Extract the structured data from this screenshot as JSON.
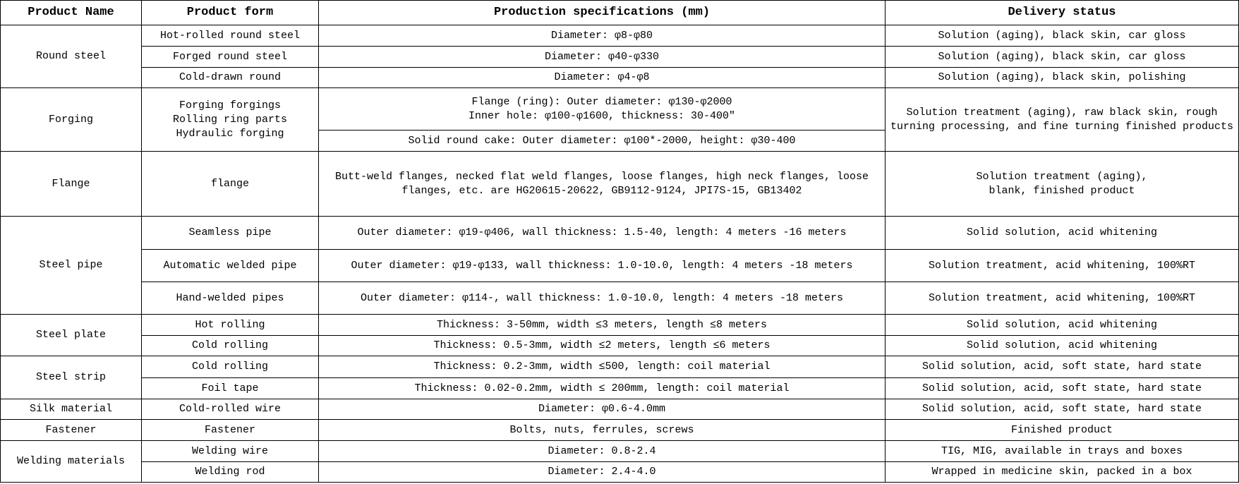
{
  "table": {
    "header": [
      "Product Name",
      "Product form",
      "Production specifications (mm)",
      "Delivery status"
    ],
    "rows": [
      [
        "Round steel",
        "Hot-rolled round steel",
        "Diameter: φ8-φ80",
        "Solution (aging), black skin, car gloss"
      ],
      [
        "Forged round steel",
        "Diameter: φ40-φ330",
        "Solution (aging), black skin, car gloss"
      ],
      [
        "Cold-drawn round",
        "Diameter: φ4-φ8",
        "Solution (aging), black skin, polishing"
      ],
      [
        "Forging",
        "Forging forgings\nRolling ring parts\nHydraulic forging",
        "Flange (ring): Outer diameter: φ130-φ2000\nInner hole: φ100-φ1600, thickness: 30-400″",
        "Solution treatment (aging), raw black skin, rough turning processing, and fine turning finished products"
      ],
      [
        "Solid round cake: Outer diameter: φ100*-2000, height: φ30-400"
      ],
      [
        "Flange",
        "flange",
        "Butt-weld flanges, necked flat weld flanges, loose flanges, high neck flanges, loose flanges, etc. are HG20615-20622, GB9112-9124, JPI7S-15, GB13402",
        "Solution treatment (aging),\nblank, finished product"
      ],
      [
        "Steel pipe",
        "Seamless pipe",
        "Outer diameter: φ19-φ406, wall thickness: 1.5-40, length: 4 meters -16 meters",
        "Solid solution, acid whitening"
      ],
      [
        "Automatic welded pipe",
        "Outer diameter: φ19-φ133, wall thickness: 1.0-10.0, length: 4 meters -18 meters",
        "Solution treatment, acid whitening, 100%RT"
      ],
      [
        "Hand-welded pipes",
        "Outer diameter: φ114-, wall thickness: 1.0-10.0, length: 4 meters -18 meters",
        "Solution treatment, acid whitening, 100%RT"
      ],
      [
        "Steel plate",
        "Hot rolling",
        "Thickness: 3-50mm, width ≤3 meters, length ≤8 meters",
        "Solid solution, acid whitening"
      ],
      [
        "Cold rolling",
        "Thickness: 0.5-3mm, width ≤2 meters, length ≤6 meters",
        "Solid solution, acid whitening"
      ],
      [
        "Steel strip",
        "Cold rolling",
        "Thickness: 0.2-3mm, width ≤500, length: coil material",
        "Solid solution, acid, soft state, hard state"
      ],
      [
        "Foil tape",
        "Thickness: 0.02-0.2mm, width ≤ 200mm, length: coil material",
        "Solid solution, acid, soft state, hard state"
      ],
      [
        "Silk material",
        "Cold-rolled wire",
        "Diameter: φ0.6-4.0mm",
        "Solid solution, acid, soft state, hard state"
      ],
      [
        "Fastener",
        "Fastener",
        "Bolts, nuts, ferrules, screws",
        "Finished product"
      ],
      [
        "Welding materials",
        "Welding wire",
        "Diameter: 0.8-2.4",
        "TIG, MIG, available in trays and boxes"
      ],
      [
        "Welding rod",
        "Diameter: 2.4-4.0",
        "Wrapped in medicine skin, packed in a box"
      ]
    ]
  }
}
